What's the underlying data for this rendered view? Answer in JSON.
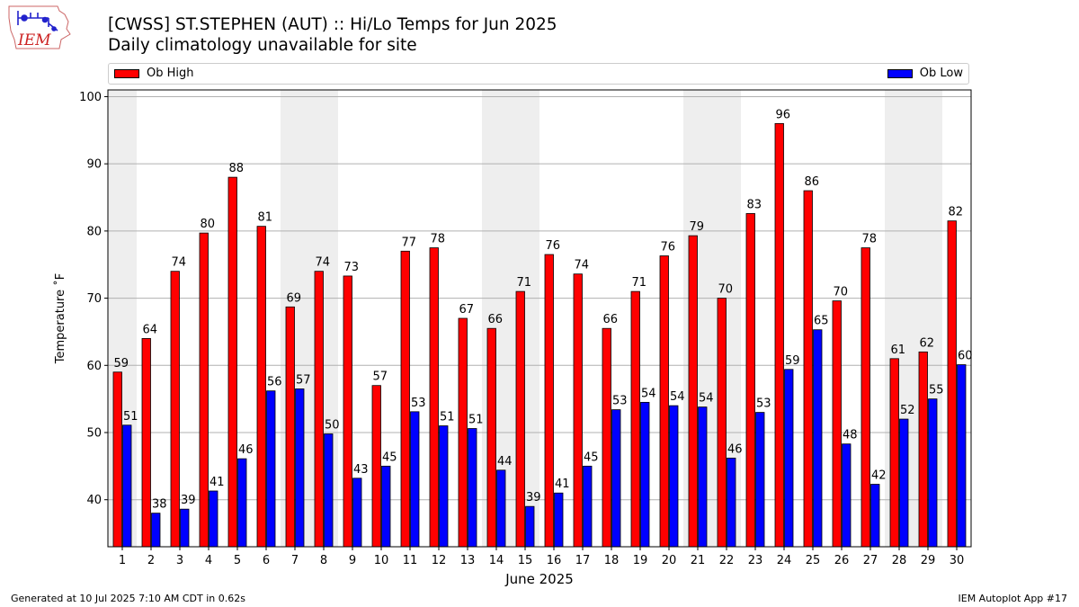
{
  "header": {
    "title_line1": "[CWSS] ST.STEPHEN (AUT) :: Hi/Lo Temps for Jun 2025",
    "title_line2": "Daily climatology unavailable for site"
  },
  "logo": {
    "text": "IEM"
  },
  "legend": {
    "high_label": "Ob High",
    "low_label": "Ob Low",
    "placement": "top"
  },
  "footer": {
    "generated": "Generated at 10 Jul 2025 7:10 AM CDT in 0.62s",
    "app": "IEM Autoplot App #17"
  },
  "colors": {
    "high": "#ff0000",
    "low": "#0000ff",
    "weekend_shade": "#eeeeee",
    "grid": "#b0b0b0"
  },
  "chart_data": {
    "type": "bar",
    "title": "[CWSS] ST.STEPHEN (AUT) :: Hi/Lo Temps for Jun 2025",
    "subtitle": "Daily climatology unavailable for site",
    "xlabel": "June 2025",
    "ylabel": "Temperature ˚F",
    "ylim": [
      33,
      101
    ],
    "yticks": [
      40,
      50,
      60,
      70,
      80,
      90,
      100
    ],
    "grid": true,
    "categories": [
      "1",
      "2",
      "3",
      "4",
      "5",
      "6",
      "7",
      "8",
      "9",
      "10",
      "11",
      "12",
      "13",
      "14",
      "15",
      "16",
      "17",
      "18",
      "19",
      "20",
      "21",
      "22",
      "23",
      "24",
      "25",
      "26",
      "27",
      "28",
      "29",
      "30"
    ],
    "shaded_days": [
      1,
      7,
      8,
      14,
      15,
      21,
      22,
      28,
      29
    ],
    "series": [
      {
        "name": "Ob High",
        "values": [
          59,
          64,
          74,
          79.7,
          88,
          80.7,
          68.7,
          74,
          73.3,
          57,
          77,
          77.5,
          67,
          65.5,
          71,
          76.5,
          73.6,
          65.5,
          71,
          76.3,
          79.3,
          70,
          82.6,
          96,
          86,
          69.6,
          77.5,
          61,
          62,
          81.5
        ],
        "labels": [
          "59",
          "64",
          "74",
          "80",
          "88",
          "81",
          "69",
          "74",
          "73",
          "57",
          "77",
          "78",
          "67",
          "66",
          "71",
          "76",
          "74",
          "66",
          "71",
          "76",
          "79",
          "70",
          "83",
          "96",
          "86",
          "70",
          "78",
          "61",
          "62",
          "82"
        ]
      },
      {
        "name": "Ob Low",
        "values": [
          51.1,
          38,
          38.6,
          41.3,
          46.1,
          56.2,
          56.5,
          49.8,
          43.2,
          45,
          53.1,
          51,
          50.6,
          44.4,
          39,
          41,
          45,
          53.4,
          54.5,
          54,
          53.8,
          46.2,
          53,
          59.4,
          65.3,
          48.3,
          42.3,
          52,
          55,
          60.1
        ],
        "labels": [
          "51",
          "38",
          "39",
          "41",
          "46",
          "56",
          "57",
          "50",
          "43",
          "45",
          "53",
          "51",
          "51",
          "44",
          "39",
          "41",
          "45",
          "53",
          "54",
          "54",
          "54",
          "46",
          "53",
          "59",
          "65",
          "48",
          "42",
          "52",
          "55",
          "60"
        ]
      }
    ]
  }
}
